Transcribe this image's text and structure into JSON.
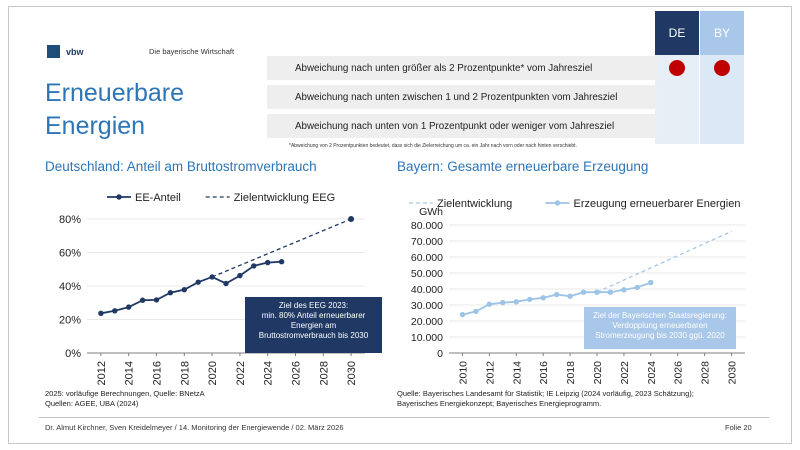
{
  "header": {
    "logo_text": "vbw",
    "logo_subtitle": "Die bayerische Wirtschaft",
    "title_line1": "Erneuerbare",
    "title_line2": "Energien"
  },
  "legend_table": {
    "col_de": "DE",
    "col_by": "BY",
    "rows": [
      "Abweichung nach unten größer als 2 Prozentpunkte* vom Jahresziel",
      "Abweichung nach unten zwischen 1 und 2 Prozentpunkten vom Jahresziel",
      "Abweichung nach unten von 1 Prozentpunkt oder weniger vom Jahresziel"
    ],
    "status_color": "#c00000",
    "footnote": "*Abweichung von 2 Prozentpunkten bedeutet, dass sich die Zielerreichung um ca. ein Jahr nach vorn oder nach hinten verschiebt."
  },
  "left_chart": {
    "heading": "Deutschland: Anteil am Bruttostromverbrauch",
    "annotation": [
      "Ziel des EEG 2023:",
      "min. 80% Anteil erneuerbarer",
      "Energien am",
      "Bruttostromverbrauch bis 2030"
    ],
    "source_line1": "2025: vorläufige Berechnungen, Quelle: BNetzA",
    "source_line2": "Quellen: AGEE, UBA (2024)"
  },
  "right_chart": {
    "heading": "Bayern: Gesamte erneuerbare Erzeugung",
    "annotation": [
      "Ziel der Bayerischen Staatsregierung:",
      "Verdopplung erneuerbaren",
      "Stromerzeugung bis 2030 ggü. 2020"
    ],
    "source_line1": "Quelle: Bayerisches Landesamt für Statistik; IE Leipzig (2024 vorläufig, 2023 Schätzung);",
    "source_line2": "Bayerisches Energiekonzept; Bayerisches Energieprogramm."
  },
  "footer": {
    "authors": "Dr. Almut Kirchner, Sven Kreidelmeyer /  14. Monitoring der Energiewende  /  02. März 2026",
    "slide": "Folie 20"
  },
  "chart_data": [
    {
      "type": "line",
      "xlabel": "",
      "ylabel": "",
      "xlim": [
        2011,
        2031
      ],
      "ylim": [
        0,
        80
      ],
      "y_ticks": [
        "0%",
        "20%",
        "40%",
        "60%",
        "80%"
      ],
      "x_ticks": [
        "2012",
        "2014",
        "2016",
        "2018",
        "2020",
        "2022",
        "2024",
        "2026",
        "2028",
        "2030"
      ],
      "legend_position": "top",
      "grid": true,
      "series": [
        {
          "name": "EE-Anteil",
          "color": "#1f3864",
          "style": "solid-markers",
          "x": [
            2012,
            2013,
            2014,
            2015,
            2016,
            2017,
            2018,
            2019,
            2020,
            2021,
            2022,
            2023,
            2024,
            2025
          ],
          "y": [
            23.7,
            25.2,
            27.4,
            31.5,
            31.7,
            36.0,
            37.8,
            42.3,
            45.4,
            41.5,
            46.2,
            52.0,
            54.0,
            54.5
          ]
        },
        {
          "name": "Zielentwicklung EEG",
          "color": "#1f3864",
          "style": "dashed",
          "x": [
            2020,
            2030
          ],
          "y": [
            45.4,
            80
          ]
        }
      ]
    },
    {
      "type": "line",
      "xlabel": "",
      "ylabel": "GWh",
      "xlim": [
        2009,
        2031
      ],
      "ylim": [
        0,
        80000
      ],
      "y_ticks": [
        "0",
        "10.000",
        "20.000",
        "30.000",
        "40.000",
        "50.000",
        "60.000",
        "70.000",
        "80.000"
      ],
      "x_ticks": [
        "2010",
        "2012",
        "2014",
        "2016",
        "2018",
        "2020",
        "2022",
        "2024",
        "2026",
        "2028",
        "2030"
      ],
      "legend_position": "top",
      "grid": true,
      "series": [
        {
          "name": "Zielentwicklung",
          "color": "#a9c7e8",
          "style": "dashed",
          "x": [
            2020,
            2030
          ],
          "y": [
            38000,
            76000
          ]
        },
        {
          "name": "Erzeugung erneuerbarer Energien",
          "color": "#9dc3e6",
          "style": "solid-markers",
          "x": [
            2010,
            2011,
            2012,
            2013,
            2014,
            2015,
            2016,
            2017,
            2018,
            2019,
            2020,
            2021,
            2022,
            2023,
            2024
          ],
          "y": [
            24000,
            26000,
            30500,
            31500,
            32000,
            33500,
            34500,
            36500,
            35500,
            38000,
            38000,
            38000,
            39500,
            41000,
            44000
          ]
        }
      ]
    }
  ]
}
